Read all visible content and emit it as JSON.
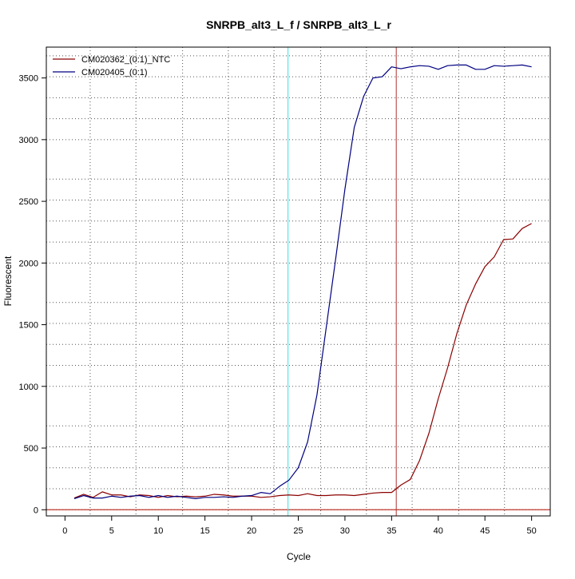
{
  "chart_data": {
    "type": "line",
    "title": "SNRPB_alt3_L_f / SNRPB_alt3_L_r",
    "xlabel": "Cycle",
    "ylabel": "Fluorescent",
    "xlim": [
      -2,
      52
    ],
    "ylim": [
      -50,
      3750
    ],
    "x_ticks": [
      0,
      5,
      10,
      15,
      20,
      25,
      30,
      35,
      40,
      45,
      50
    ],
    "x_tick_labels": [
      "0",
      "5",
      "10",
      "15",
      "20",
      "25",
      "30",
      "35",
      "40",
      "45",
      "50"
    ],
    "y_ticks": [
      0,
      500,
      1000,
      1500,
      2000,
      2500,
      3000,
      3500
    ],
    "y_tick_labels": [
      "0",
      "500",
      "1000",
      "1500",
      "2000",
      "2500",
      "3000",
      "3500"
    ],
    "grid": true,
    "grid_x": [
      2.7,
      7.6,
      12.6,
      17.5,
      22.4,
      27.4,
      32.3,
      37.2,
      42.2,
      47.1
    ],
    "grid_y": [
      0,
      170,
      340,
      510,
      680,
      1000,
      1170,
      1340,
      1510,
      1680,
      2000,
      2170,
      2340,
      2510,
      2680,
      3000,
      3170,
      3340,
      3510,
      3680
    ],
    "legend_position": "top-left",
    "baseline": {
      "y": 0,
      "color": "#c0392b"
    },
    "threshold_lines": [
      {
        "x": 23.9,
        "color": "#40e0e0"
      },
      {
        "x": 35.5,
        "color": "#b03030"
      }
    ],
    "x": [
      1,
      2,
      3,
      4,
      5,
      6,
      7,
      8,
      9,
      10,
      11,
      12,
      13,
      14,
      15,
      16,
      17,
      18,
      19,
      20,
      21,
      22,
      23,
      24,
      25,
      26,
      27,
      28,
      29,
      30,
      31,
      32,
      33,
      34,
      35,
      36,
      37,
      38,
      39,
      40,
      41,
      42,
      43,
      44,
      45,
      46,
      47,
      48,
      49,
      50
    ],
    "series": [
      {
        "name": "CM020362_(0:1)_NTC",
        "color": "#8b0000",
        "values": [
          95,
          125,
          100,
          145,
          120,
          120,
          105,
          120,
          115,
          100,
          115,
          105,
          110,
          105,
          110,
          125,
          120,
          110,
          110,
          110,
          100,
          105,
          115,
          120,
          115,
          130,
          115,
          115,
          120,
          120,
          115,
          125,
          135,
          140,
          140,
          200,
          245,
          400,
          620,
          900,
          1150,
          1430,
          1660,
          1830,
          1970,
          2050,
          2190,
          2195,
          2280,
          2320
        ]
      },
      {
        "name": "CM020405_(0:1)",
        "color": "#000080",
        "values": [
          90,
          115,
          95,
          95,
          110,
          100,
          110,
          115,
          100,
          115,
          100,
          110,
          100,
          90,
          100,
          100,
          105,
          100,
          110,
          115,
          140,
          130,
          190,
          240,
          340,
          550,
          930,
          1480,
          2030,
          2600,
          3100,
          3350,
          3500,
          3510,
          3590,
          3575,
          3590,
          3600,
          3595,
          3570,
          3600,
          3605,
          3605,
          3570,
          3570,
          3600,
          3595,
          3600,
          3605,
          3590
        ]
      }
    ]
  }
}
